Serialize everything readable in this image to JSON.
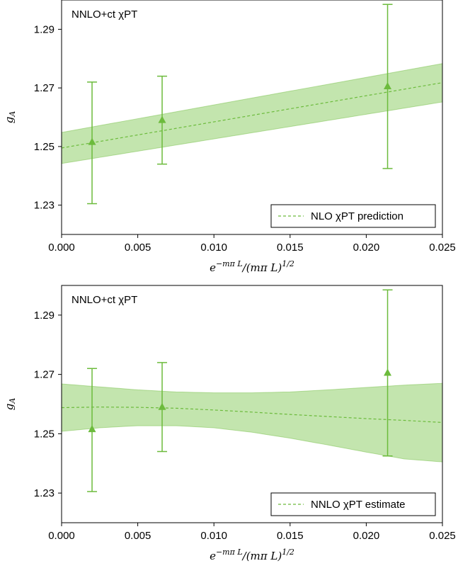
{
  "chart_data": [
    {
      "type": "line",
      "title": "",
      "annotation": "NNLO+ct χPT",
      "xlabel": "e^{−m_π L}/(m_π L)^{1/2}",
      "xlabel_main": "e",
      "xlabel_sup": "−mπ L",
      "xlabel_rest": "/(mπ L)",
      "xlabel_sup2": "1/2",
      "ylabel": "gA",
      "ylabel_main": "g",
      "ylabel_sub": "A",
      "xlim": [
        0.0,
        0.025
      ],
      "ylim": [
        1.22,
        1.3
      ],
      "xticks": [
        0.0,
        0.005,
        0.01,
        0.015,
        0.02,
        0.025
      ],
      "xtick_labels": [
        "0.000",
        "0.005",
        "0.010",
        "0.015",
        "0.020",
        "0.025"
      ],
      "yticks": [
        1.23,
        1.25,
        1.27,
        1.29
      ],
      "ytick_labels": [
        "1.23",
        "1.25",
        "1.27",
        "1.29"
      ],
      "color": "#6cbb3c",
      "band_color": "#b8e0a0",
      "legend": {
        "label": "NLO χPT prediction",
        "placement": "bottom-right"
      },
      "points": [
        {
          "x": 0.002,
          "y": 1.2515,
          "yerr_low": 1.2305,
          "yerr_high": 1.272
        },
        {
          "x": 0.0066,
          "y": 1.259,
          "yerr_low": 1.244,
          "yerr_high": 1.274
        },
        {
          "x": 0.0214,
          "y": 1.2705,
          "yerr_low": 1.2425,
          "yerr_high": 1.2985
        }
      ],
      "fit_line": {
        "x": [
          0.0,
          0.025
        ],
        "y": [
          1.2495,
          1.2718
        ]
      },
      "band": {
        "x": [
          0.0,
          0.025
        ],
        "lower": [
          1.2442,
          1.2652
        ],
        "upper": [
          1.2548,
          1.2783
        ]
      }
    },
    {
      "type": "line",
      "title": "",
      "annotation": "NNLO+ct χPT",
      "xlabel": "e^{−m_π L}/(m_π L)^{1/2}",
      "xlabel_main": "e",
      "xlabel_sup": "−mπ L",
      "xlabel_rest": "/(mπ L)",
      "xlabel_sup2": "1/2",
      "ylabel": "gA",
      "ylabel_main": "g",
      "ylabel_sub": "A",
      "xlim": [
        0.0,
        0.025
      ],
      "ylim": [
        1.22,
        1.3
      ],
      "xticks": [
        0.0,
        0.005,
        0.01,
        0.015,
        0.02,
        0.025
      ],
      "xtick_labels": [
        "0.000",
        "0.005",
        "0.010",
        "0.015",
        "0.020",
        "0.025"
      ],
      "yticks": [
        1.23,
        1.25,
        1.27,
        1.29
      ],
      "ytick_labels": [
        "1.23",
        "1.25",
        "1.27",
        "1.29"
      ],
      "color": "#6cbb3c",
      "band_color": "#b8e0a0",
      "legend": {
        "label": "NNLO χPT estimate",
        "placement": "bottom-right"
      },
      "points": [
        {
          "x": 0.002,
          "y": 1.2515,
          "yerr_low": 1.2305,
          "yerr_high": 1.272
        },
        {
          "x": 0.0066,
          "y": 1.259,
          "yerr_low": 1.244,
          "yerr_high": 1.274
        },
        {
          "x": 0.0214,
          "y": 1.2705,
          "yerr_low": 1.2425,
          "yerr_high": 1.2985
        }
      ],
      "fit_line": {
        "x": [
          0.0,
          0.0025,
          0.005,
          0.0075,
          0.01,
          0.0125,
          0.015,
          0.0175,
          0.02,
          0.0225,
          0.025
        ],
        "y": [
          1.2588,
          1.259,
          1.2589,
          1.2586,
          1.258,
          1.2573,
          1.2565,
          1.2558,
          1.2551,
          1.2545,
          1.2538
        ]
      },
      "band": {
        "x": [
          0.0,
          0.0025,
          0.005,
          0.0075,
          0.01,
          0.0125,
          0.015,
          0.0175,
          0.02,
          0.0225,
          0.025
        ],
        "lower": [
          1.2508,
          1.252,
          1.2527,
          1.2527,
          1.252,
          1.2505,
          1.2485,
          1.2462,
          1.2438,
          1.2415,
          1.2405
        ],
        "upper": [
          1.2668,
          1.2658,
          1.2648,
          1.2641,
          1.2638,
          1.2638,
          1.2641,
          1.2648,
          1.2656,
          1.2664,
          1.267
        ]
      }
    }
  ]
}
